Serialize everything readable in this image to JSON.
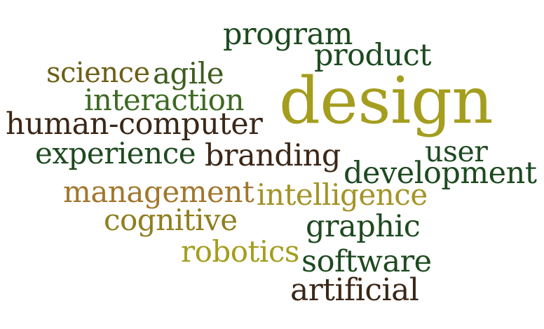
{
  "words": [
    {
      "text": "program",
      "color": "#1d4a1f"
    },
    {
      "text": "product",
      "color": "#1d4a1f"
    },
    {
      "text": "science",
      "color": "#6d5f16"
    },
    {
      "text": "agile",
      "color": "#3e5d1e"
    },
    {
      "text": "design",
      "color": "#a49d1e"
    },
    {
      "text": "interaction",
      "color": "#3d6a23"
    },
    {
      "text": "human-computer",
      "color": "#3b2717"
    },
    {
      "text": "experience",
      "color": "#1d4a1f"
    },
    {
      "text": "branding",
      "color": "#3b2717"
    },
    {
      "text": "user",
      "color": "#1d4a1f"
    },
    {
      "text": "development",
      "color": "#1d4a1f"
    },
    {
      "text": "management",
      "color": "#a2762c"
    },
    {
      "text": "intelligence",
      "color": "#a39325"
    },
    {
      "text": "cognitive",
      "color": "#8f7f1e"
    },
    {
      "text": "graphic",
      "color": "#1d4a1f"
    },
    {
      "text": "robotics",
      "color": "#a49d1e"
    },
    {
      "text": "software",
      "color": "#1d4a1f"
    },
    {
      "text": "artificial",
      "color": "#3b2717"
    }
  ]
}
